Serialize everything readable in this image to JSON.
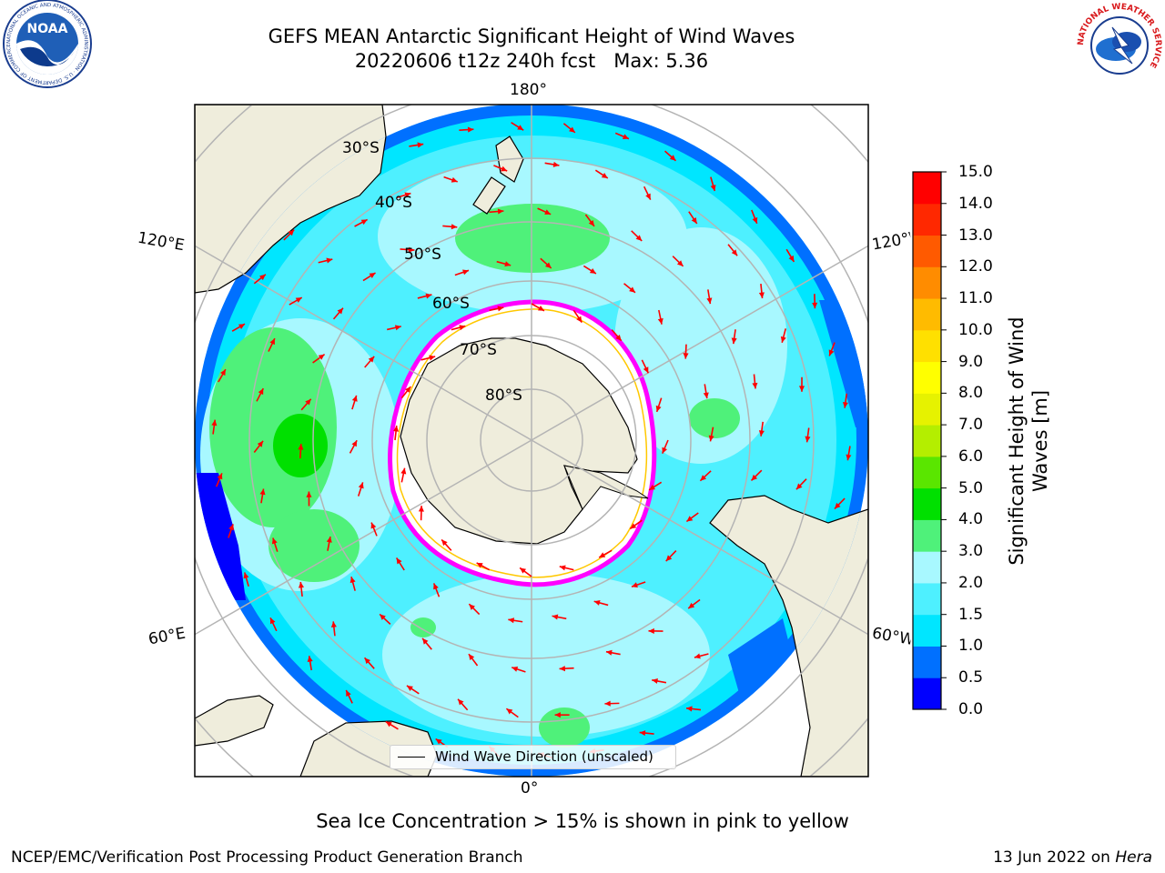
{
  "header": {
    "title_line1": "GEFS MEAN Antarctic Significant Height of Wind Waves",
    "title_line2": "20220606 t12z 240h fcst   Max: 5.36"
  },
  "map": {
    "projection": "south-polar-stereographic",
    "longitude_labels": {
      "top": "180°",
      "bottom": "0°",
      "left_upper": "120°E",
      "left_lower": "60°E",
      "right_upper": "120°W",
      "right_lower": "60°W"
    },
    "latitude_labels": [
      "30°S",
      "40°S",
      "50°S",
      "60°S",
      "70°S",
      "80°S"
    ],
    "land_color": "#efeddc",
    "grid_color": "#b4b4b4",
    "arrow_color": "#ff0000",
    "sea_ice_colors": [
      "#ff00ff",
      "#ff9ec8",
      "#ffc800",
      "#ffff00"
    ]
  },
  "legend": {
    "label": "Wind Wave Direction (unscaled)"
  },
  "colorbar": {
    "title_line1": "Significant Height of Wind",
    "title_line2": "Waves [m]",
    "ticks": [
      "15.0",
      "14.0",
      "13.0",
      "12.0",
      "11.0",
      "10.0",
      "9.0",
      "8.0",
      "7.0",
      "6.0",
      "5.0",
      "4.0",
      "3.0",
      "2.0",
      "1.5",
      "1.0",
      "0.5",
      "0.0"
    ],
    "colors_bottom_to_top": [
      "#0000ff",
      "#0070ff",
      "#00e6ff",
      "#4ef0ff",
      "#a8f8ff",
      "#4ff17a",
      "#00e000",
      "#5ae600",
      "#b4ee00",
      "#e6f200",
      "#ffff00",
      "#ffe000",
      "#ffbb00",
      "#ff8c00",
      "#ff5a00",
      "#ff2800",
      "#ff0000"
    ]
  },
  "caption": "Sea Ice Concentration > 15% is shown in pink to yellow",
  "footer": {
    "left": "NCEP/EMC/Verification Post Processing Product Generation Branch",
    "right_prefix": "13 Jun 2022 on ",
    "right_host": "Hera"
  },
  "logos": {
    "noaa_text": "NOAA",
    "noaa_ring": "NATIONAL OCEANIC AND ATMOSPHERIC ADMINISTRATION · U.S. DEPARTMENT OF COMMERCE",
    "nws_ring": "NATIONAL WEATHER SERVICE"
  }
}
